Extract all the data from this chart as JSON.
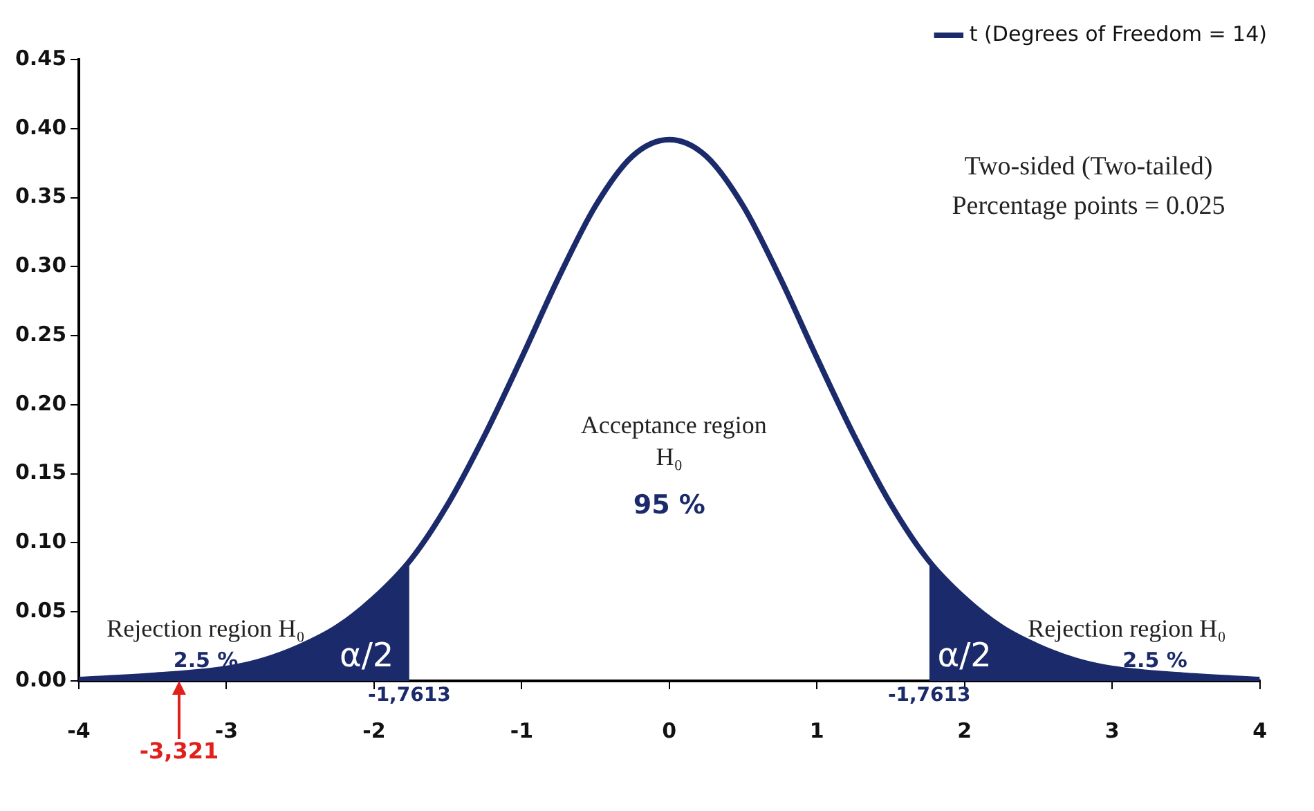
{
  "chart_data": {
    "type": "line",
    "xlim": [
      -4,
      4
    ],
    "xticks": [
      -4,
      -3,
      -2,
      -1,
      0,
      1,
      2,
      3,
      4
    ],
    "ylim": [
      0,
      0.45
    ],
    "yticks": [
      {
        "value": 0,
        "label": "0.00"
      },
      0.05,
      {
        "value": 0.1,
        "label": "0.10"
      },
      0.15,
      {
        "value": 0.2,
        "label": "0.20"
      },
      0.25,
      {
        "value": 0.3,
        "label": "0.30"
      },
      0.35,
      {
        "value": 0.4,
        "label": "0.40"
      },
      0.45
    ],
    "grid": false,
    "legend": "top right",
    "marker": "none",
    "line_style": "solid",
    "series": [
      {
        "name": "t (Degrees of Freedom = 14)",
        "color": "#1b2a6b",
        "x": [
          -4,
          -3.5,
          -3,
          -2.75,
          -2.5,
          -2.25,
          -2,
          -1.75,
          -1.5,
          -1.25,
          -1,
          -0.75,
          -0.5,
          -0.25,
          0,
          0.25,
          0.5,
          0.75,
          1,
          1.25,
          1.5,
          1.75,
          2,
          2.25,
          2.5,
          2.75,
          3,
          3.5,
          4
        ],
        "values": [
          0.001,
          0.004,
          0.009,
          0.015,
          0.025,
          0.039,
          0.06,
          0.088,
          0.128,
          0.178,
          0.234,
          0.292,
          0.344,
          0.38,
          0.392,
          0.38,
          0.344,
          0.292,
          0.234,
          0.178,
          0.128,
          0.088,
          0.06,
          0.039,
          0.025,
          0.015,
          0.009,
          0.004,
          0.001
        ]
      },
      {
        "type": "area",
        "color": "#1b2a6b",
        "x": [
          -4,
          -3.5,
          -3,
          -2.75,
          -2.5,
          -2.25,
          -2,
          -1.7613
        ],
        "values": [
          0.001,
          0.004,
          0.009,
          0.015,
          0.025,
          0.039,
          0.06,
          0.088
        ]
      },
      {
        "type": "area",
        "color": "#1b2a6b",
        "x": [
          1.7613,
          2,
          2.25,
          2.5,
          2.75,
          3,
          3.5,
          4
        ],
        "values": [
          0.088,
          0.06,
          0.039,
          0.025,
          0.015,
          0.009,
          0.004,
          0.001
        ]
      }
    ],
    "annotations": [
      "Two-sided (Two-tailed)",
      "Percentage points = 0.025",
      "Acceptance region",
      "H₀",
      "95 %",
      "Rejection region H₀",
      "2.5 %",
      "α/2",
      "Rejection region H₀",
      "2.5 %",
      "α/2",
      {
        "text": "-1,7613",
        "x": -1.7613,
        "y": 0
      },
      {
        "text": "-1,7613",
        "x": 1.7613,
        "y": 0
      },
      {
        "text": "-3,321",
        "x": -3.321,
        "y": 0
      }
    ]
  }
}
